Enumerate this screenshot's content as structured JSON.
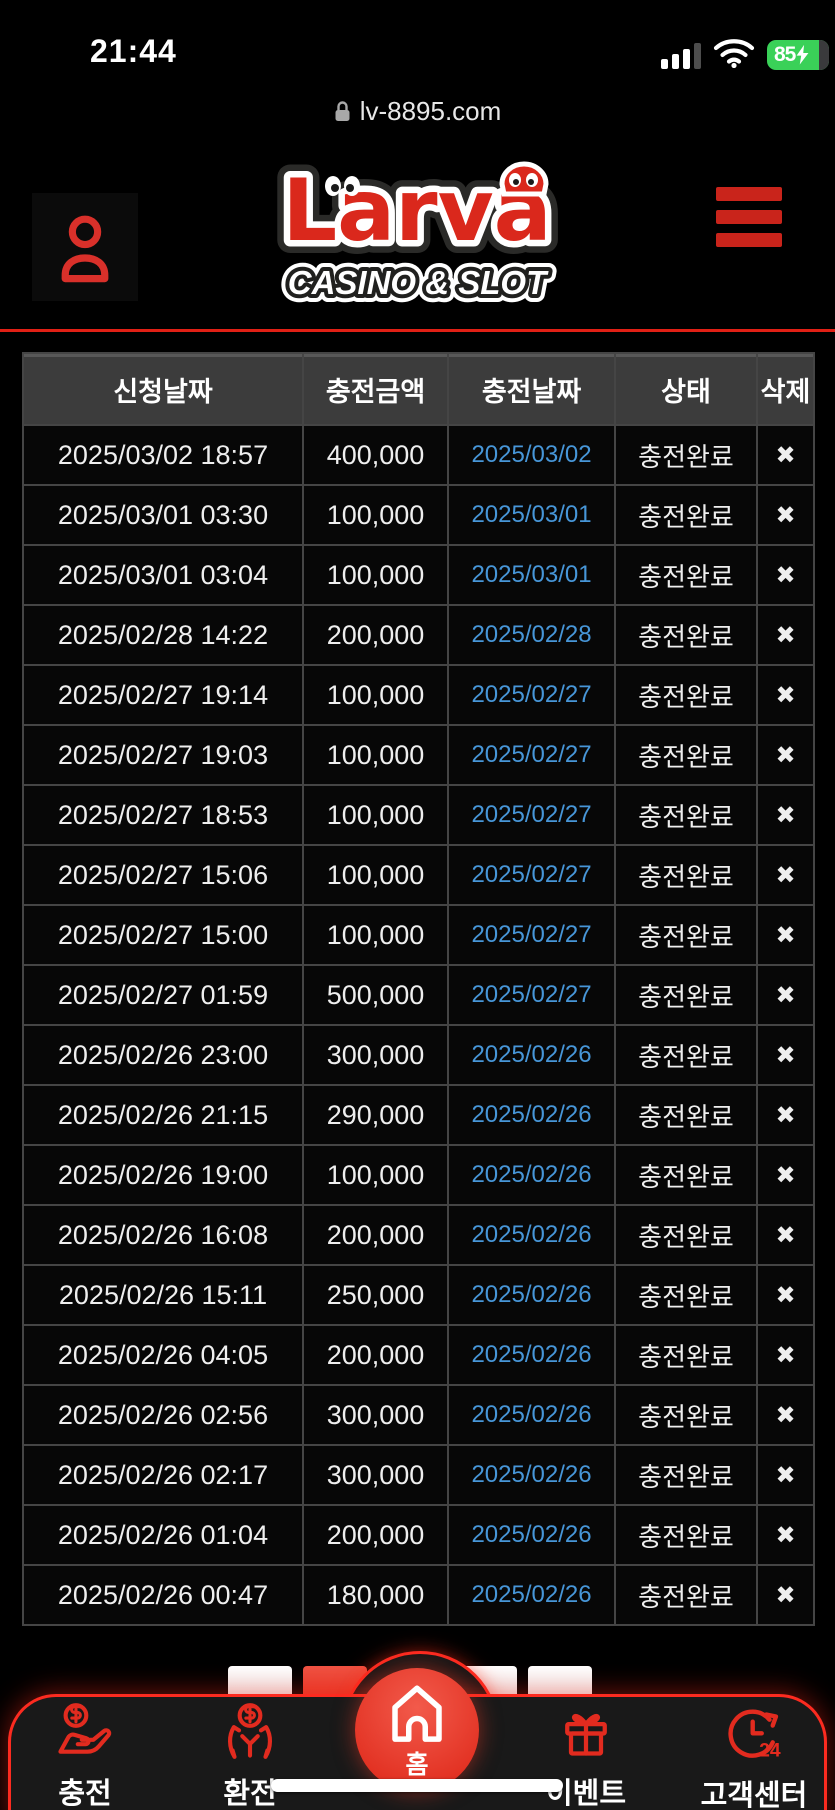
{
  "status_bar": {
    "time": "21:44",
    "battery_percent": "85",
    "battery_charging": true,
    "signal_icon": "cellular-signal",
    "wifi_icon": "wifi"
  },
  "url_bar": {
    "lock_icon": "padlock",
    "domain": "lv-8895.com"
  },
  "header": {
    "profile_icon": "person",
    "logo_title": "Larva",
    "logo_subtitle": "CASINO & SLOT",
    "menu_icon": "hamburger-menu"
  },
  "table": {
    "columns": [
      "신청날짜",
      "충전금액",
      "충전날짜",
      "상태",
      "삭제"
    ],
    "delete_glyph": "✖",
    "rows": [
      {
        "request_date": "2025/03/02 18:57",
        "amount": "400,000",
        "charge_date": "2025/03/02",
        "status": "충전완료"
      },
      {
        "request_date": "2025/03/01 03:30",
        "amount": "100,000",
        "charge_date": "2025/03/01",
        "status": "충전완료"
      },
      {
        "request_date": "2025/03/01 03:04",
        "amount": "100,000",
        "charge_date": "2025/03/01",
        "status": "충전완료"
      },
      {
        "request_date": "2025/02/28 14:22",
        "amount": "200,000",
        "charge_date": "2025/02/28",
        "status": "충전완료"
      },
      {
        "request_date": "2025/02/27 19:14",
        "amount": "100,000",
        "charge_date": "2025/02/27",
        "status": "충전완료"
      },
      {
        "request_date": "2025/02/27 19:03",
        "amount": "100,000",
        "charge_date": "2025/02/27",
        "status": "충전완료"
      },
      {
        "request_date": "2025/02/27 18:53",
        "amount": "100,000",
        "charge_date": "2025/02/27",
        "status": "충전완료"
      },
      {
        "request_date": "2025/02/27 15:06",
        "amount": "100,000",
        "charge_date": "2025/02/27",
        "status": "충전완료"
      },
      {
        "request_date": "2025/02/27 15:00",
        "amount": "100,000",
        "charge_date": "2025/02/27",
        "status": "충전완료"
      },
      {
        "request_date": "2025/02/27 01:59",
        "amount": "500,000",
        "charge_date": "2025/02/27",
        "status": "충전완료"
      },
      {
        "request_date": "2025/02/26 23:00",
        "amount": "300,000",
        "charge_date": "2025/02/26",
        "status": "충전완료"
      },
      {
        "request_date": "2025/02/26 21:15",
        "amount": "290,000",
        "charge_date": "2025/02/26",
        "status": "충전완료"
      },
      {
        "request_date": "2025/02/26 19:00",
        "amount": "100,000",
        "charge_date": "2025/02/26",
        "status": "충전완료"
      },
      {
        "request_date": "2025/02/26 16:08",
        "amount": "200,000",
        "charge_date": "2025/02/26",
        "status": "충전완료"
      },
      {
        "request_date": "2025/02/26 15:11",
        "amount": "250,000",
        "charge_date": "2025/02/26",
        "status": "충전완료"
      },
      {
        "request_date": "2025/02/26 04:05",
        "amount": "200,000",
        "charge_date": "2025/02/26",
        "status": "충전완료"
      },
      {
        "request_date": "2025/02/26 02:56",
        "amount": "300,000",
        "charge_date": "2025/02/26",
        "status": "충전완료"
      },
      {
        "request_date": "2025/02/26 02:17",
        "amount": "300,000",
        "charge_date": "2025/02/26",
        "status": "충전완료"
      },
      {
        "request_date": "2025/02/26 01:04",
        "amount": "200,000",
        "charge_date": "2025/02/26",
        "status": "충전완료"
      },
      {
        "request_date": "2025/02/26 00:47",
        "amount": "180,000",
        "charge_date": "2025/02/26",
        "status": "충전완료"
      }
    ]
  },
  "pagination": {
    "total_buttons": 5,
    "active_button": 2
  },
  "bottom_nav": {
    "support_icon_text": "24",
    "items": [
      {
        "label": "충전",
        "icon": "hand-coin-icon"
      },
      {
        "label": "환전",
        "icon": "hands-coin-icon"
      },
      {
        "label": "홈",
        "icon": "home-icon"
      },
      {
        "label": "이벤트",
        "icon": "gift-icon"
      },
      {
        "label": "고객센터",
        "icon": "clock-24-icon"
      }
    ]
  },
  "colors": {
    "accent_red": "#e0271c",
    "link_blue": "#4796d8",
    "battery_green": "#3ad158",
    "table_border": "#454545",
    "header_row_bg": "#3c3c3c"
  }
}
